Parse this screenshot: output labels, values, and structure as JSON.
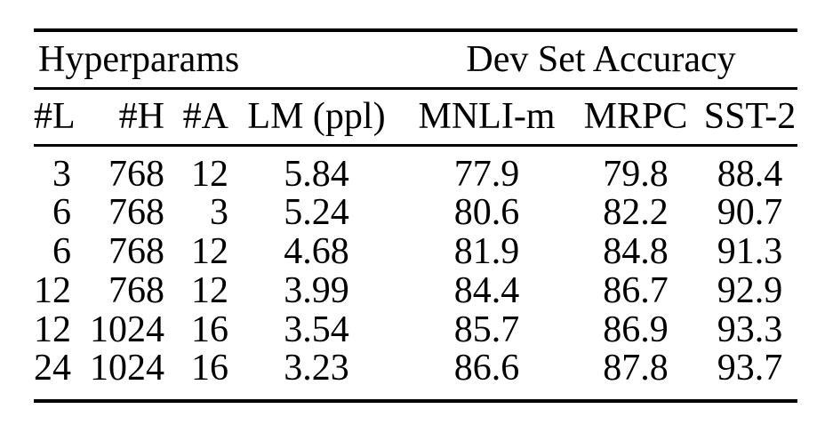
{
  "table": {
    "group_headers": [
      {
        "label": "Hyperparams",
        "colspan": 4
      },
      {
        "label": "Dev Set Accuracy",
        "colspan": 3
      }
    ],
    "columns": [
      "#L",
      "#H",
      "#A",
      "LM (ppl)",
      "MNLI-m",
      "MRPC",
      "SST-2"
    ],
    "rows": [
      [
        "3",
        "768",
        "12",
        "5.84",
        "77.9",
        "79.8",
        "88.4"
      ],
      [
        "6",
        "768",
        "3",
        "5.24",
        "80.6",
        "82.2",
        "90.7"
      ],
      [
        "6",
        "768",
        "12",
        "4.68",
        "81.9",
        "84.8",
        "91.3"
      ],
      [
        "12",
        "768",
        "12",
        "3.99",
        "84.4",
        "86.7",
        "92.9"
      ],
      [
        "12",
        "1024",
        "16",
        "3.54",
        "85.7",
        "86.9",
        "93.3"
      ],
      [
        "24",
        "1024",
        "16",
        "3.23",
        "86.6",
        "87.8",
        "93.7"
      ]
    ]
  },
  "colors": {
    "text": "#000000",
    "background": "#ffffff",
    "rule": "#000000"
  }
}
